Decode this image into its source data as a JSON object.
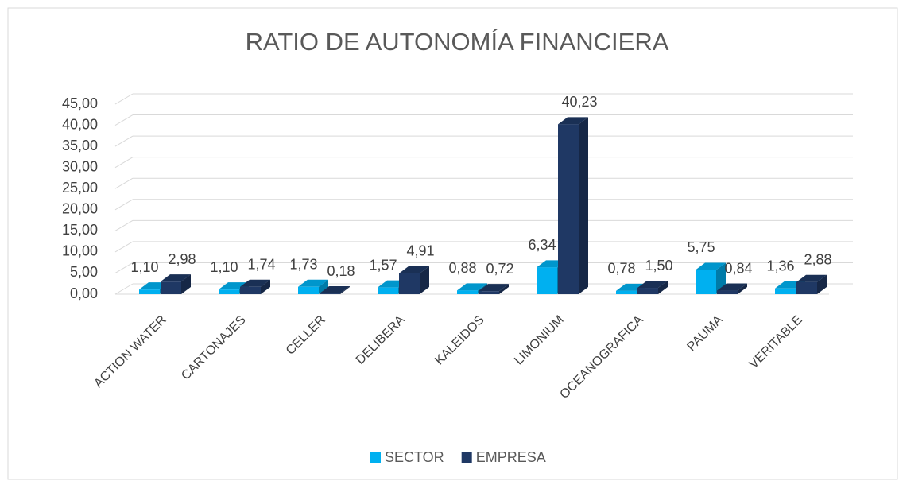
{
  "chart_data": {
    "type": "bar3d",
    "title": "RATIO DE AUTONOMÍA FINANCIERA",
    "categories": [
      "ACTION WATER",
      "CARTONAJES",
      "CELLER",
      "DELIBERA",
      "KALEIDOS",
      "LIMONIUM",
      "OCEANOGRAFICA",
      "PAUMA",
      "VERITABLE"
    ],
    "series": [
      {
        "name": "SECTOR",
        "color": "#00b0f0",
        "values": [
          1.1,
          1.1,
          1.73,
          1.57,
          0.88,
          6.34,
          0.78,
          5.75,
          1.36
        ],
        "value_labels": [
          "1,10",
          "1,10",
          "1,73",
          "1,57",
          "0,88",
          "6,34",
          "0,78",
          "5,75",
          "1,36"
        ]
      },
      {
        "name": "EMPRESA",
        "color": "#1f3864",
        "values": [
          2.98,
          1.74,
          0.18,
          4.91,
          0.72,
          40.23,
          1.5,
          0.84,
          2.88
        ],
        "value_labels": [
          "2,98",
          "1,74",
          "0,18",
          "4,91",
          "0,72",
          "40,23",
          "1,50",
          "0,84",
          "2,88"
        ]
      }
    ],
    "ylim": [
      0,
      45
    ],
    "yticks": [
      {
        "value": 0,
        "label": "0,00"
      },
      {
        "value": 5,
        "label": "5,00"
      },
      {
        "value": 10,
        "label": "10,00"
      },
      {
        "value": 15,
        "label": "15,00"
      },
      {
        "value": 20,
        "label": "20,00"
      },
      {
        "value": 25,
        "label": "25,00"
      },
      {
        "value": 30,
        "label": "30,00"
      },
      {
        "value": 35,
        "label": "35,00"
      },
      {
        "value": 40,
        "label": "40,00"
      },
      {
        "value": 45,
        "label": "45,00"
      }
    ],
    "grid": true,
    "legend": "bottom"
  }
}
